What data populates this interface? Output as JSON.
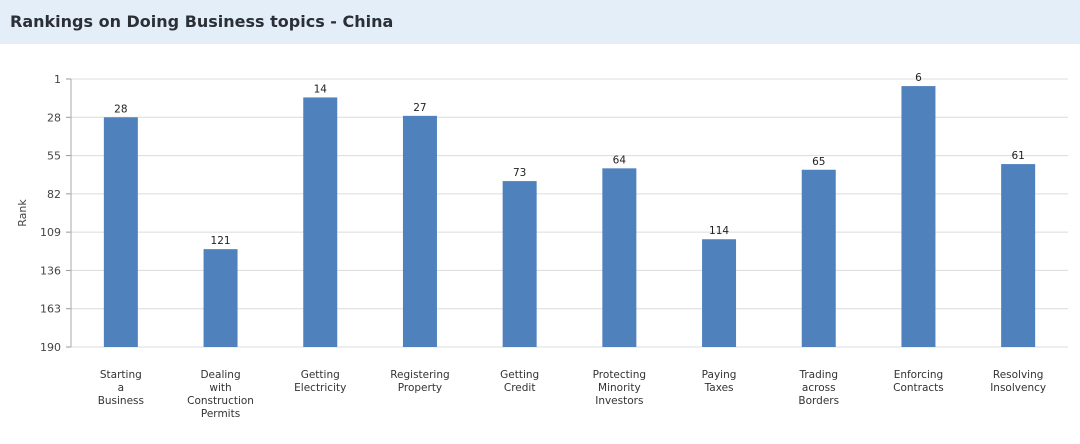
{
  "chart_data": {
    "type": "bar",
    "title": "Rankings on Doing Business topics - China",
    "xlabel": "",
    "ylabel": "Rank",
    "ylim": [
      190,
      1
    ],
    "y_inverted": true,
    "yticks": [
      1,
      28,
      55,
      82,
      109,
      136,
      163,
      190
    ],
    "grid": true,
    "categories": [
      [
        "Starting",
        "a",
        "Business"
      ],
      [
        "Dealing",
        "with",
        "Construction",
        "Permits"
      ],
      [
        "Getting",
        "Electricity"
      ],
      [
        "Registering",
        "Property"
      ],
      [
        "Getting",
        "Credit"
      ],
      [
        "Protecting",
        "Minority",
        "Investors"
      ],
      [
        "Paying",
        "Taxes"
      ],
      [
        "Trading",
        "across",
        "Borders"
      ],
      [
        "Enforcing",
        "Contracts"
      ],
      [
        "Resolving",
        "Insolvency"
      ]
    ],
    "values": [
      28,
      121,
      14,
      27,
      73,
      64,
      114,
      65,
      6,
      61
    ],
    "bar_color": "#4f81bd"
  }
}
